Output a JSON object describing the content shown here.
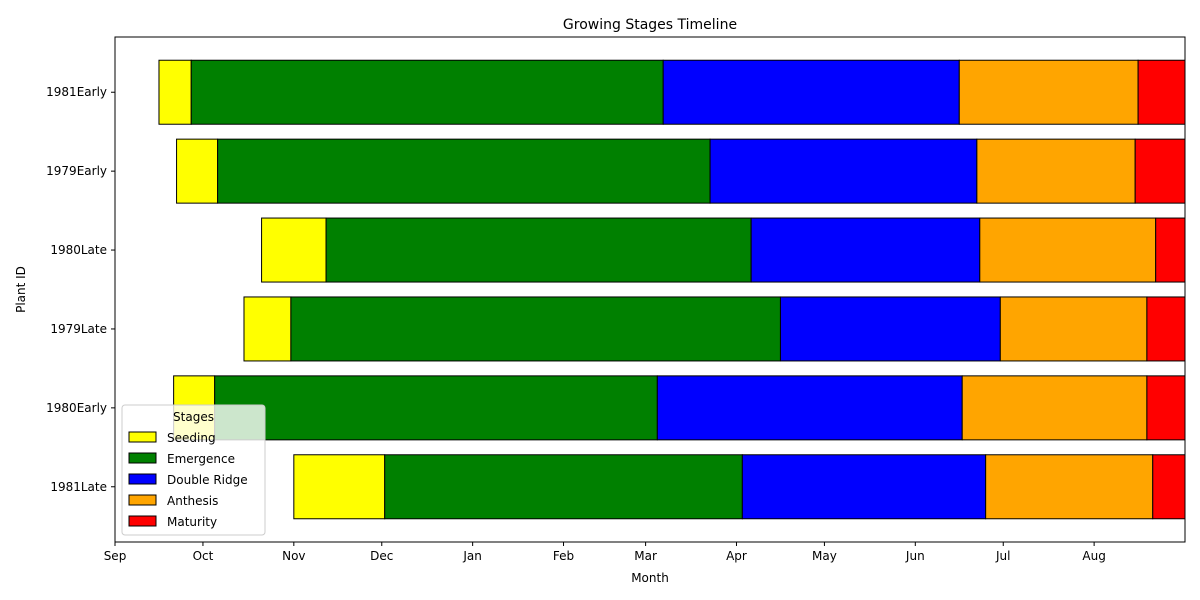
{
  "chart_data": {
    "type": "bar",
    "orientation": "horizontal-gantt",
    "title": "Growing Stages Timeline",
    "xlabel": "Month",
    "ylabel": "Plant ID",
    "x_ticks": [
      "Sep",
      "Oct",
      "Nov",
      "Dec",
      "Jan",
      "Feb",
      "Mar",
      "Apr",
      "May",
      "Jun",
      "Jul",
      "Aug"
    ],
    "x_range": [
      "Sep 1",
      "Aug 31"
    ],
    "categories": [
      "1981Early",
      "1979Early",
      "1980Late",
      "1979Late",
      "1980Early",
      "1981Late"
    ],
    "legend": {
      "title": "Stages",
      "placement": "lower-left",
      "entries": [
        "Seeding",
        "Emergence",
        "Double Ridge",
        "Anthesis",
        "Maturity"
      ]
    },
    "stage_colors": {
      "Seeding": "#ffff00",
      "Emergence": "#008000",
      "Double Ridge": "#0000ff",
      "Anthesis": "#ffa500",
      "Maturity": "#ff0000"
    },
    "series": [
      {
        "plant": "1981Early",
        "stages": [
          {
            "stage": "Seeding",
            "start": "Sep 16",
            "end": "Sep 26"
          },
          {
            "stage": "Emergence",
            "start": "Sep 27",
            "end": "Mar 6"
          },
          {
            "stage": "Double Ridge",
            "start": "Mar 7",
            "end": "Jun 15"
          },
          {
            "stage": "Anthesis",
            "start": "Jun 16",
            "end": "Aug 15"
          },
          {
            "stage": "Maturity",
            "start": "Aug 16",
            "end": "Aug 31"
          }
        ]
      },
      {
        "plant": "1979Early",
        "stages": [
          {
            "stage": "Seeding",
            "start": "Sep 22",
            "end": "Oct 5"
          },
          {
            "stage": "Emergence",
            "start": "Oct 6",
            "end": "Mar 22"
          },
          {
            "stage": "Double Ridge",
            "start": "Mar 23",
            "end": "Jun 21"
          },
          {
            "stage": "Anthesis",
            "start": "Jun 22",
            "end": "Aug 14"
          },
          {
            "stage": "Maturity",
            "start": "Aug 15",
            "end": "Aug 31"
          }
        ]
      },
      {
        "plant": "1980Late",
        "stages": [
          {
            "stage": "Seeding",
            "start": "Oct 21",
            "end": "Nov 11"
          },
          {
            "stage": "Emergence",
            "start": "Nov 12",
            "end": "Apr 5"
          },
          {
            "stage": "Double Ridge",
            "start": "Apr 6",
            "end": "Jun 22"
          },
          {
            "stage": "Anthesis",
            "start": "Jun 23",
            "end": "Aug 21"
          },
          {
            "stage": "Maturity",
            "start": "Aug 22",
            "end": "Aug 31"
          }
        ]
      },
      {
        "plant": "1979Late",
        "stages": [
          {
            "stage": "Seeding",
            "start": "Oct 15",
            "end": "Oct 30"
          },
          {
            "stage": "Emergence",
            "start": "Oct 31",
            "end": "Apr 15"
          },
          {
            "stage": "Double Ridge",
            "start": "Apr 16",
            "end": "Jun 29"
          },
          {
            "stage": "Anthesis",
            "start": "Jun 30",
            "end": "Aug 18"
          },
          {
            "stage": "Maturity",
            "start": "Aug 19",
            "end": "Aug 31"
          }
        ]
      },
      {
        "plant": "1980Early",
        "stages": [
          {
            "stage": "Seeding",
            "start": "Sep 21",
            "end": "Oct 4"
          },
          {
            "stage": "Emergence",
            "start": "Oct 5",
            "end": "Mar 4"
          },
          {
            "stage": "Double Ridge",
            "start": "Mar 5",
            "end": "Jun 16"
          },
          {
            "stage": "Anthesis",
            "start": "Jun 17",
            "end": "Aug 18"
          },
          {
            "stage": "Maturity",
            "start": "Aug 19",
            "end": "Aug 31"
          }
        ]
      },
      {
        "plant": "1981Late",
        "stages": [
          {
            "stage": "Seeding",
            "start": "Nov 1",
            "end": "Dec 1"
          },
          {
            "stage": "Emergence",
            "start": "Dec 2",
            "end": "Apr 2"
          },
          {
            "stage": "Double Ridge",
            "start": "Apr 3",
            "end": "Jun 24"
          },
          {
            "stage": "Anthesis",
            "start": "Jun 25",
            "end": "Aug 20"
          },
          {
            "stage": "Maturity",
            "start": "Aug 21",
            "end": "Aug 31"
          }
        ]
      }
    ]
  }
}
